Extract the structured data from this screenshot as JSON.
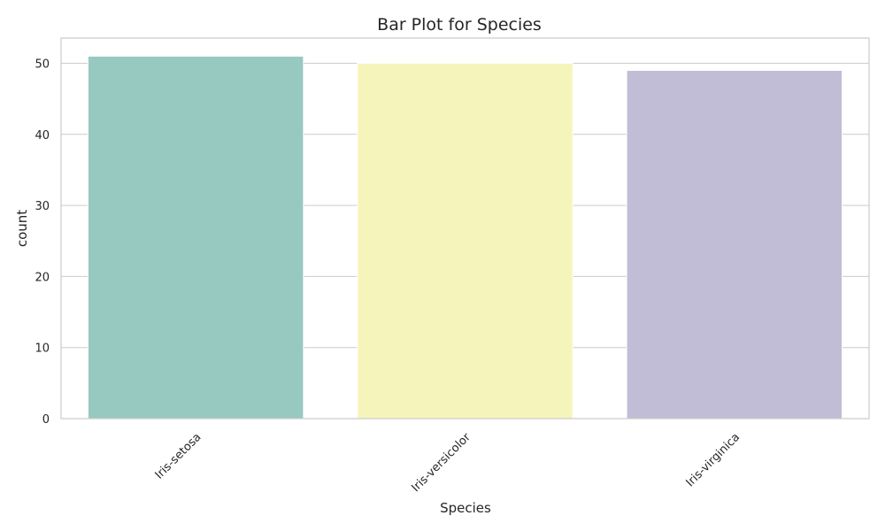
{
  "chart_data": {
    "type": "bar",
    "title": "Bar Plot for Species",
    "xlabel": "Species",
    "ylabel": "count",
    "categories": [
      "Iris-setosa",
      "Iris-versicolor",
      "Iris-virginica"
    ],
    "values": [
      51,
      50,
      49
    ],
    "colors": [
      "#97c9c0",
      "#f5f5bb",
      "#c1bdd6"
    ],
    "ylim": [
      0,
      53.55
    ],
    "yticks": [
      0,
      10,
      20,
      30,
      40,
      50
    ],
    "ytick_labels": [
      "0",
      "10",
      "20",
      "30",
      "40",
      "50"
    ],
    "grid": "horizontal",
    "xtick_rotation": 45,
    "style": {
      "background": "#ffffff",
      "grid_color": "#cccccc",
      "spine_color": "#cccccc",
      "text_color": "#262626"
    }
  }
}
